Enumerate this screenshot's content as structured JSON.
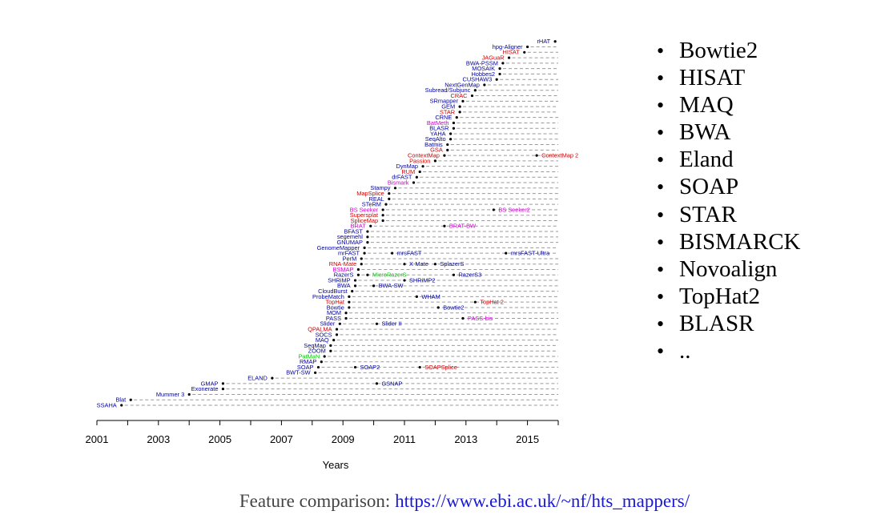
{
  "chart_data": {
    "type": "timeline",
    "xlabel": "Years",
    "xlim": [
      2001,
      2016
    ],
    "x_ticks": [
      2001,
      2003,
      2005,
      2007,
      2009,
      2011,
      2013,
      2015
    ],
    "colors": {
      "blue": "#00009a",
      "red": "#cc0000",
      "magenta": "#cc00cc",
      "green": "#00cc00"
    },
    "tools": [
      {
        "name": "SSAHA",
        "x": 2001.8,
        "color": "blue"
      },
      {
        "name": "Blat",
        "x": 2002.1,
        "color": "blue"
      },
      {
        "name": "Mummer 3",
        "x": 2004.0,
        "color": "blue"
      },
      {
        "name": "Exonerate",
        "x": 2005.1,
        "color": "blue"
      },
      {
        "name": "GMAP",
        "x": 2005.1,
        "color": "blue",
        "extras": [
          {
            "name": "GSNAP",
            "x": 2010.1,
            "color": "blue"
          }
        ]
      },
      {
        "name": "ELAND",
        "x": 2006.7,
        "color": "blue"
      },
      {
        "name": "BWT-SW",
        "x": 2008.1,
        "color": "blue"
      },
      {
        "name": "SOAP",
        "x": 2008.2,
        "color": "blue",
        "extras": [
          {
            "name": "SOAP2",
            "x": 2009.4,
            "color": "blue"
          },
          {
            "name": "SOAPSplice",
            "x": 2011.5,
            "color": "red"
          }
        ]
      },
      {
        "name": "RMAP",
        "x": 2008.3,
        "color": "blue"
      },
      {
        "name": "PatMaN",
        "x": 2008.4,
        "color": "green"
      },
      {
        "name": "ZOOM",
        "x": 2008.6,
        "color": "blue"
      },
      {
        "name": "SeqMap",
        "x": 2008.6,
        "color": "blue"
      },
      {
        "name": "MAQ",
        "x": 2008.7,
        "color": "blue"
      },
      {
        "name": "SOCS",
        "x": 2008.8,
        "color": "blue"
      },
      {
        "name": "QPALMA",
        "x": 2008.8,
        "color": "red"
      },
      {
        "name": "Slider",
        "x": 2008.9,
        "color": "blue",
        "extras": [
          {
            "name": "Slider II",
            "x": 2010.1,
            "color": "blue"
          }
        ]
      },
      {
        "name": "PASS",
        "x": 2009.1,
        "color": "blue",
        "extras": [
          {
            "name": "PASS-bis",
            "x": 2012.9,
            "color": "magenta"
          }
        ]
      },
      {
        "name": "MOM",
        "x": 2009.1,
        "color": "blue"
      },
      {
        "name": "Bowtie",
        "x": 2009.2,
        "color": "blue",
        "extras": [
          {
            "name": "Bowtie2",
            "x": 2012.1,
            "color": "blue"
          }
        ]
      },
      {
        "name": "TopHat",
        "x": 2009.2,
        "color": "red",
        "extras": [
          {
            "name": "TopHat 2",
            "x": 2013.3,
            "color": "red"
          }
        ]
      },
      {
        "name": "ProbeMatch",
        "x": 2009.2,
        "color": "blue",
        "extras": [
          {
            "name": "WHAM",
            "x": 2011.4,
            "color": "blue"
          }
        ]
      },
      {
        "name": "CloudBurst",
        "x": 2009.3,
        "color": "blue"
      },
      {
        "name": "BWA",
        "x": 2009.4,
        "color": "blue",
        "extras": [
          {
            "name": "BWA-SW",
            "x": 2010.0,
            "color": "blue"
          }
        ]
      },
      {
        "name": "SHRiMP",
        "x": 2009.4,
        "color": "blue",
        "extras": [
          {
            "name": "SHRiMP2",
            "x": 2011.0,
            "color": "blue"
          }
        ]
      },
      {
        "name": "RazerS",
        "x": 2009.5,
        "color": "blue",
        "extras": [
          {
            "name": "MicroRazerS",
            "x": 2009.8,
            "color": "green"
          },
          {
            "name": "RazerS3",
            "x": 2012.6,
            "color": "blue"
          }
        ]
      },
      {
        "name": "BSMAP",
        "x": 2009.5,
        "color": "magenta"
      },
      {
        "name": "RNA-Mate",
        "x": 2009.6,
        "color": "red",
        "extras": [
          {
            "name": "X-Mate",
            "x": 2011.0,
            "color": "blue"
          },
          {
            "name": "SplazerS",
            "x": 2012.0,
            "color": "blue"
          }
        ]
      },
      {
        "name": "PerM",
        "x": 2009.6,
        "color": "blue"
      },
      {
        "name": "mrFAST",
        "x": 2009.7,
        "color": "blue",
        "extras": [
          {
            "name": "mrsFAST",
            "x": 2010.6,
            "color": "blue"
          },
          {
            "name": "mrsFAST-Ultra",
            "x": 2014.3,
            "color": "blue"
          }
        ]
      },
      {
        "name": "GenomeMapper",
        "x": 2009.7,
        "color": "blue"
      },
      {
        "name": "GNUMAP",
        "x": 2009.8,
        "color": "blue"
      },
      {
        "name": "segemehl",
        "x": 2009.8,
        "color": "blue"
      },
      {
        "name": "BFAST",
        "x": 2009.8,
        "color": "blue"
      },
      {
        "name": "BRAT",
        "x": 2009.9,
        "color": "magenta",
        "extras": [
          {
            "name": "BRAT-BW",
            "x": 2012.3,
            "color": "magenta"
          }
        ]
      },
      {
        "name": "SpliceMap",
        "x": 2010.3,
        "color": "red"
      },
      {
        "name": "Supersplat",
        "x": 2010.3,
        "color": "red"
      },
      {
        "name": "BS Seeker",
        "x": 2010.3,
        "color": "magenta",
        "extras": [
          {
            "name": "BS Seeker2",
            "x": 2013.9,
            "color": "magenta"
          }
        ]
      },
      {
        "name": "STeRM",
        "x": 2010.4,
        "color": "blue"
      },
      {
        "name": "REAL",
        "x": 2010.5,
        "color": "blue"
      },
      {
        "name": "MapSplice",
        "x": 2010.5,
        "color": "red"
      },
      {
        "name": "Stampy",
        "x": 2010.7,
        "color": "blue"
      },
      {
        "name": "Bismark",
        "x": 2011.3,
        "color": "magenta"
      },
      {
        "name": "drFAST",
        "x": 2011.4,
        "color": "blue"
      },
      {
        "name": "RUM",
        "x": 2011.5,
        "color": "red"
      },
      {
        "name": "DynMap",
        "x": 2011.6,
        "color": "blue"
      },
      {
        "name": "Passion",
        "x": 2012.0,
        "color": "red"
      },
      {
        "name": "ContextMap",
        "x": 2012.3,
        "color": "red",
        "extras": [
          {
            "name": "ContextMap 2",
            "x": 2015.3,
            "color": "red"
          }
        ]
      },
      {
        "name": "GSA",
        "x": 2012.4,
        "color": "red"
      },
      {
        "name": "Batmis",
        "x": 2012.4,
        "color": "blue"
      },
      {
        "name": "SeqAlto",
        "x": 2012.5,
        "color": "blue"
      },
      {
        "name": "YAHA",
        "x": 2012.5,
        "color": "blue"
      },
      {
        "name": "BLASR",
        "x": 2012.6,
        "color": "blue"
      },
      {
        "name": "BatMeth",
        "x": 2012.6,
        "color": "magenta"
      },
      {
        "name": "CRNE",
        "x": 2012.7,
        "color": "blue"
      },
      {
        "name": "STAR",
        "x": 2012.8,
        "color": "red"
      },
      {
        "name": "GEM",
        "x": 2012.8,
        "color": "blue"
      },
      {
        "name": "SRmapper",
        "x": 2012.9,
        "color": "blue"
      },
      {
        "name": "CRAC",
        "x": 2013.2,
        "color": "red"
      },
      {
        "name": "Subread/Subjunc",
        "x": 2013.3,
        "color": "blue"
      },
      {
        "name": "NextGenMap",
        "x": 2013.6,
        "color": "blue"
      },
      {
        "name": "CUSHAW3",
        "x": 2014.0,
        "color": "blue"
      },
      {
        "name": "Hobbes2",
        "x": 2014.1,
        "color": "blue"
      },
      {
        "name": "MOSAIK",
        "x": 2014.1,
        "color": "blue"
      },
      {
        "name": "BWA-PSSM",
        "x": 2014.2,
        "color": "blue"
      },
      {
        "name": "JAGuaR",
        "x": 2014.4,
        "color": "red"
      },
      {
        "name": "HISAT",
        "x": 2014.9,
        "color": "red"
      },
      {
        "name": "hpg-Aligner",
        "x": 2015.0,
        "color": "blue"
      },
      {
        "name": "rHAT",
        "x": 2015.9,
        "color": "blue"
      }
    ]
  },
  "bullets": [
    "Bowtie2",
    "HISAT",
    "MAQ",
    "BWA",
    "Eland",
    "SOAP",
    "STAR",
    "BISMARCK",
    "Novoalign",
    "TopHat2",
    "BLASR",
    ".."
  ],
  "caption": {
    "prefix": "Feature comparison: ",
    "link": "https://www.ebi.ac.uk/~nf/hts_mappers/"
  }
}
